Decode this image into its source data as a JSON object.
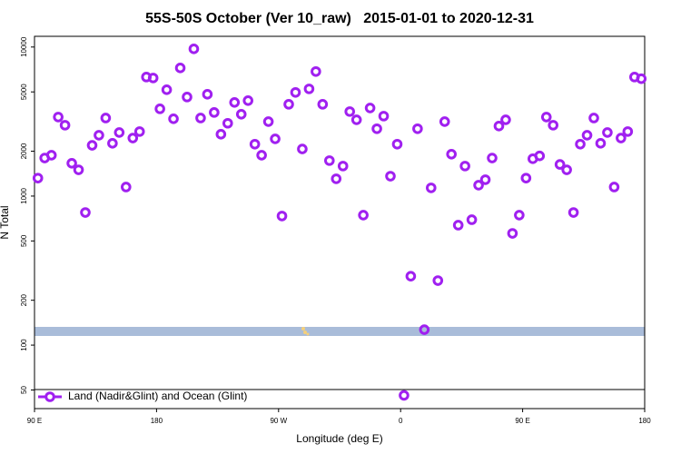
{
  "chart_data": {
    "type": "scatter",
    "title": "55S-50S October (Ver 10_raw)   2015-01-01 to 2020-12-31",
    "xlabel": "Longitude (deg E)",
    "ylabel": "N Total",
    "xlim": [
      90,
      540
    ],
    "xticks": [
      {
        "value": 90,
        "label": "90 E"
      },
      180,
      {
        "value": 270,
        "label": "90 W"
      },
      {
        "value": 360,
        "label": "0"
      },
      {
        "value": 450,
        "label": "90 E"
      },
      {
        "value": 540,
        "label": "180"
      }
    ],
    "ylim": [
      37.5,
      11800
    ],
    "yticks": [
      50,
      100,
      200,
      500,
      1000,
      2000,
      5000,
      10000
    ],
    "log_y": true,
    "grid": false,
    "legend": "lower left",
    "x": [
      92.5,
      97.5,
      102.5,
      107.5,
      112.5,
      117.5,
      122.5,
      127.5,
      132.5,
      137.5,
      142.5,
      147.5,
      152.5,
      157.5,
      162.5,
      167.5,
      172.5,
      177.5,
      182.5,
      187.5,
      192.5,
      197.5,
      202.5,
      207.5,
      212.5,
      217.5,
      222.5,
      227.5,
      232.5,
      237.5,
      242.5,
      247.5,
      252.5,
      257.5,
      262.5,
      267.5,
      272.5,
      277.5,
      282.5,
      287.5,
      292.5,
      297.5,
      302.5,
      307.5,
      312.5,
      317.5,
      322.5,
      327.5,
      332.5,
      337.5,
      342.5,
      347.5,
      352.5,
      357.5,
      362.5,
      367.5,
      372.5,
      377.5,
      382.5,
      387.5,
      392.5,
      397.5,
      402.5,
      407.5,
      412.5,
      417.5,
      422.5,
      427.5,
      432.5,
      437.5,
      442.5,
      447.5,
      452.5,
      457.5,
      462.5,
      467.5,
      472.5,
      477.5,
      482.5,
      487.5,
      492.5,
      497.5,
      502.5,
      507.5,
      512.5,
      517.5,
      522.5,
      527.5,
      532.5,
      537.5
    ],
    "series": [
      {
        "name": "Land (Nadir&Glint) and Ocean (Glint)",
        "color": "#a020f0",
        "values": [
          1320,
          1800,
          1880,
          3390,
          2990,
          1660,
          1500,
          776,
          2190,
          2560,
          3340,
          2260,
          2670,
          1150,
          2450,
          2710,
          6290,
          6200,
          3850,
          5170,
          3300,
          7240,
          4620,
          9720,
          3340,
          4820,
          3640,
          2600,
          3080,
          4250,
          3540,
          4370,
          2230,
          1880,
          3160,
          2420,
          735,
          4130,
          4960,
          2070,
          5240,
          6850,
          4130,
          1730,
          1306,
          1590,
          3690,
          3250,
          745,
          3900,
          2830,
          3440,
          1360,
          2230,
          46,
          290,
          2830,
          127,
          1135,
          271,
          3160,
          1910,
          638,
          1590,
          694,
          1183,
          1288,
          1800,
          2950,
          3250,
          562,
          745,
          1320,
          1780,
          1860,
          3390,
          2990,
          1630,
          1500,
          776,
          2230,
          2560,
          3340,
          2260,
          2670,
          1150,
          2450,
          2710,
          6290,
          6130
        ]
      }
    ]
  }
}
